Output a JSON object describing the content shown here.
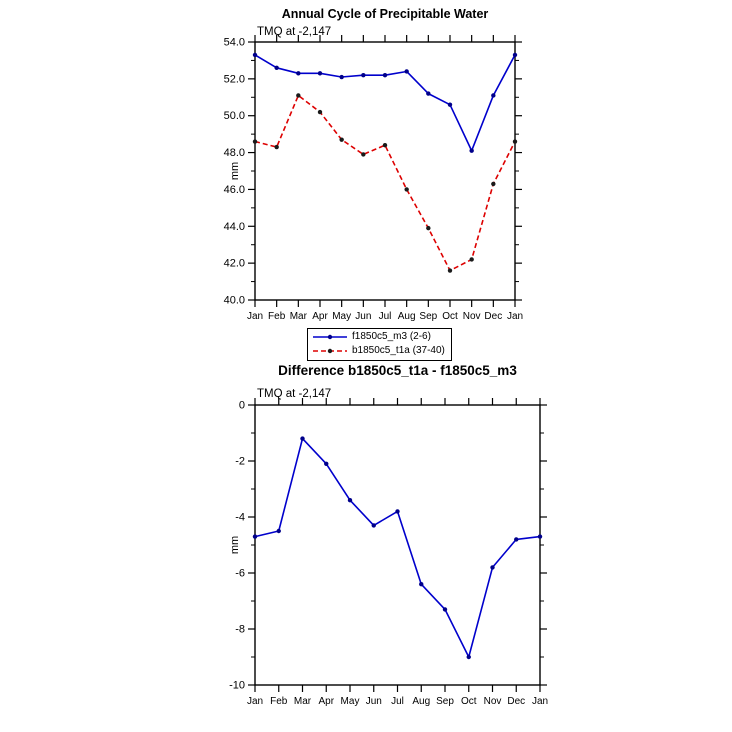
{
  "figure": {
    "background": "#ffffff"
  },
  "chart_data": [
    {
      "type": "line",
      "title": "Annual Cycle of Precipitable Water",
      "subtitle": "TMQ at -2,147",
      "xlabel": "",
      "ylabel": "mm",
      "ylim": [
        40,
        54
      ],
      "yticks": [
        40,
        42,
        44,
        46,
        48,
        50,
        52,
        54
      ],
      "ytick_labels": [
        "40.0",
        "42.0",
        "44.0",
        "46.0",
        "48.0",
        "50.0",
        "52.0",
        "54.0"
      ],
      "minor_step": 1,
      "grid": false,
      "categories": [
        "Jan",
        "Feb",
        "Mar",
        "Apr",
        "May",
        "Jun",
        "Jul",
        "Aug",
        "Sep",
        "Oct",
        "Nov",
        "Dec",
        "Jan"
      ],
      "series": [
        {
          "name": "f1850c5_m3 (2-6)",
          "color": "#0000cc",
          "dash": "solid",
          "marker_color": "#00008b",
          "values": [
            53.3,
            52.6,
            52.3,
            52.3,
            52.1,
            52.2,
            52.2,
            52.4,
            51.2,
            50.6,
            48.1,
            51.1,
            53.3
          ]
        },
        {
          "name": "b1850c5_t1a (37-40)",
          "color": "#dd0000",
          "dash": "dashed",
          "marker_color": "#1a1a1a",
          "values": [
            48.6,
            48.3,
            51.1,
            50.2,
            48.7,
            47.9,
            48.4,
            46.0,
            43.9,
            41.6,
            42.2,
            46.3,
            48.6
          ]
        }
      ],
      "legend_position": "below"
    },
    {
      "type": "line",
      "title": "Difference b1850c5_t1a - f1850c5_m3",
      "subtitle": "TMQ at -2,147",
      "xlabel": "",
      "ylabel": "mm",
      "ylim": [
        -10,
        0
      ],
      "yticks": [
        -10,
        -8,
        -6,
        -4,
        -2,
        0
      ],
      "ytick_labels": [
        "-10",
        "-8",
        "-6",
        "-4",
        "-2",
        "0"
      ],
      "minor_step": 1,
      "grid": false,
      "categories": [
        "Jan",
        "Feb",
        "Mar",
        "Apr",
        "May",
        "Jun",
        "Jul",
        "Aug",
        "Sep",
        "Oct",
        "Nov",
        "Dec",
        "Jan"
      ],
      "series": [
        {
          "name": "difference",
          "color": "#0000cc",
          "dash": "solid",
          "marker_color": "#00008b",
          "values": [
            -4.7,
            -4.5,
            -1.2,
            -2.1,
            -3.4,
            -4.3,
            -3.8,
            -6.4,
            -7.3,
            -9.0,
            -5.8,
            -4.8,
            -4.7
          ]
        }
      ],
      "legend_position": "none"
    }
  ]
}
